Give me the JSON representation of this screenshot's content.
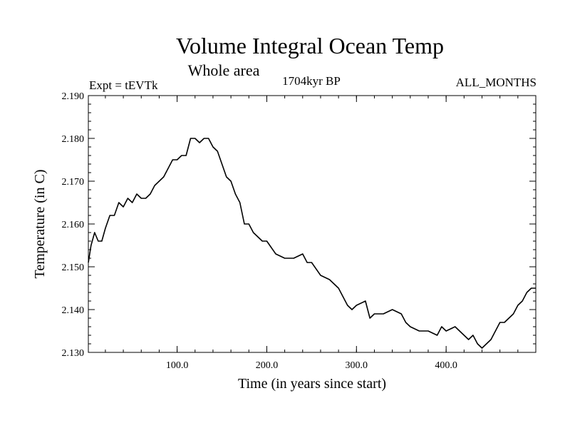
{
  "chart_data": {
    "type": "line",
    "title": "Volume Integral Ocean Temp",
    "subtitle": "Whole area",
    "expt_label": "Expt = tEVTk",
    "period_label": "1704kyr BP",
    "months_label": "ALL_MONTHS",
    "xlabel": "Time (in years since start)",
    "ylabel": "Temperature (in C)",
    "xlim": [
      1,
      500
    ],
    "ylim": [
      2.13,
      2.19
    ],
    "x_ticks": [
      100,
      200,
      300,
      400
    ],
    "x_tick_labels": [
      "100.0",
      "200.0",
      "300.0",
      "400.0"
    ],
    "y_ticks": [
      2.13,
      2.14,
      2.15,
      2.16,
      2.17,
      2.18,
      2.19
    ],
    "y_tick_labels": [
      "2.130",
      "2.140",
      "2.150",
      "2.160",
      "2.170",
      "2.180",
      "2.190"
    ],
    "line_color": "#000000",
    "series": [
      {
        "name": "Volume Integral Ocean Temp",
        "x": [
          1,
          4,
          8,
          12,
          16,
          20,
          25,
          30,
          35,
          40,
          45,
          50,
          55,
          60,
          65,
          70,
          75,
          80,
          85,
          90,
          95,
          100,
          105,
          110,
          115,
          120,
          125,
          130,
          135,
          140,
          145,
          150,
          155,
          160,
          165,
          170,
          175,
          180,
          185,
          190,
          195,
          200,
          210,
          220,
          230,
          240,
          245,
          250,
          260,
          270,
          280,
          290,
          295,
          300,
          310,
          315,
          320,
          330,
          340,
          350,
          355,
          360,
          370,
          380,
          390,
          395,
          400,
          410,
          420,
          425,
          430,
          435,
          440,
          445,
          450,
          455,
          460,
          465,
          470,
          475,
          480,
          485,
          490,
          495,
          500
        ],
        "values": [
          2.151,
          2.155,
          2.158,
          2.156,
          2.156,
          2.159,
          2.162,
          2.162,
          2.165,
          2.164,
          2.166,
          2.165,
          2.167,
          2.166,
          2.166,
          2.167,
          2.169,
          2.17,
          2.171,
          2.173,
          2.175,
          2.175,
          2.176,
          2.176,
          2.18,
          2.18,
          2.179,
          2.18,
          2.18,
          2.178,
          2.177,
          2.174,
          2.171,
          2.17,
          2.167,
          2.165,
          2.16,
          2.16,
          2.158,
          2.157,
          2.156,
          2.156,
          2.153,
          2.152,
          2.152,
          2.153,
          2.151,
          2.151,
          2.148,
          2.147,
          2.145,
          2.141,
          2.14,
          2.141,
          2.142,
          2.138,
          2.139,
          2.139,
          2.14,
          2.139,
          2.137,
          2.136,
          2.135,
          2.135,
          2.134,
          2.136,
          2.135,
          2.136,
          2.134,
          2.133,
          2.134,
          2.132,
          2.131,
          2.132,
          2.133,
          2.135,
          2.137,
          2.137,
          2.138,
          2.139,
          2.141,
          2.142,
          2.144,
          2.145,
          2.145
        ]
      }
    ]
  }
}
